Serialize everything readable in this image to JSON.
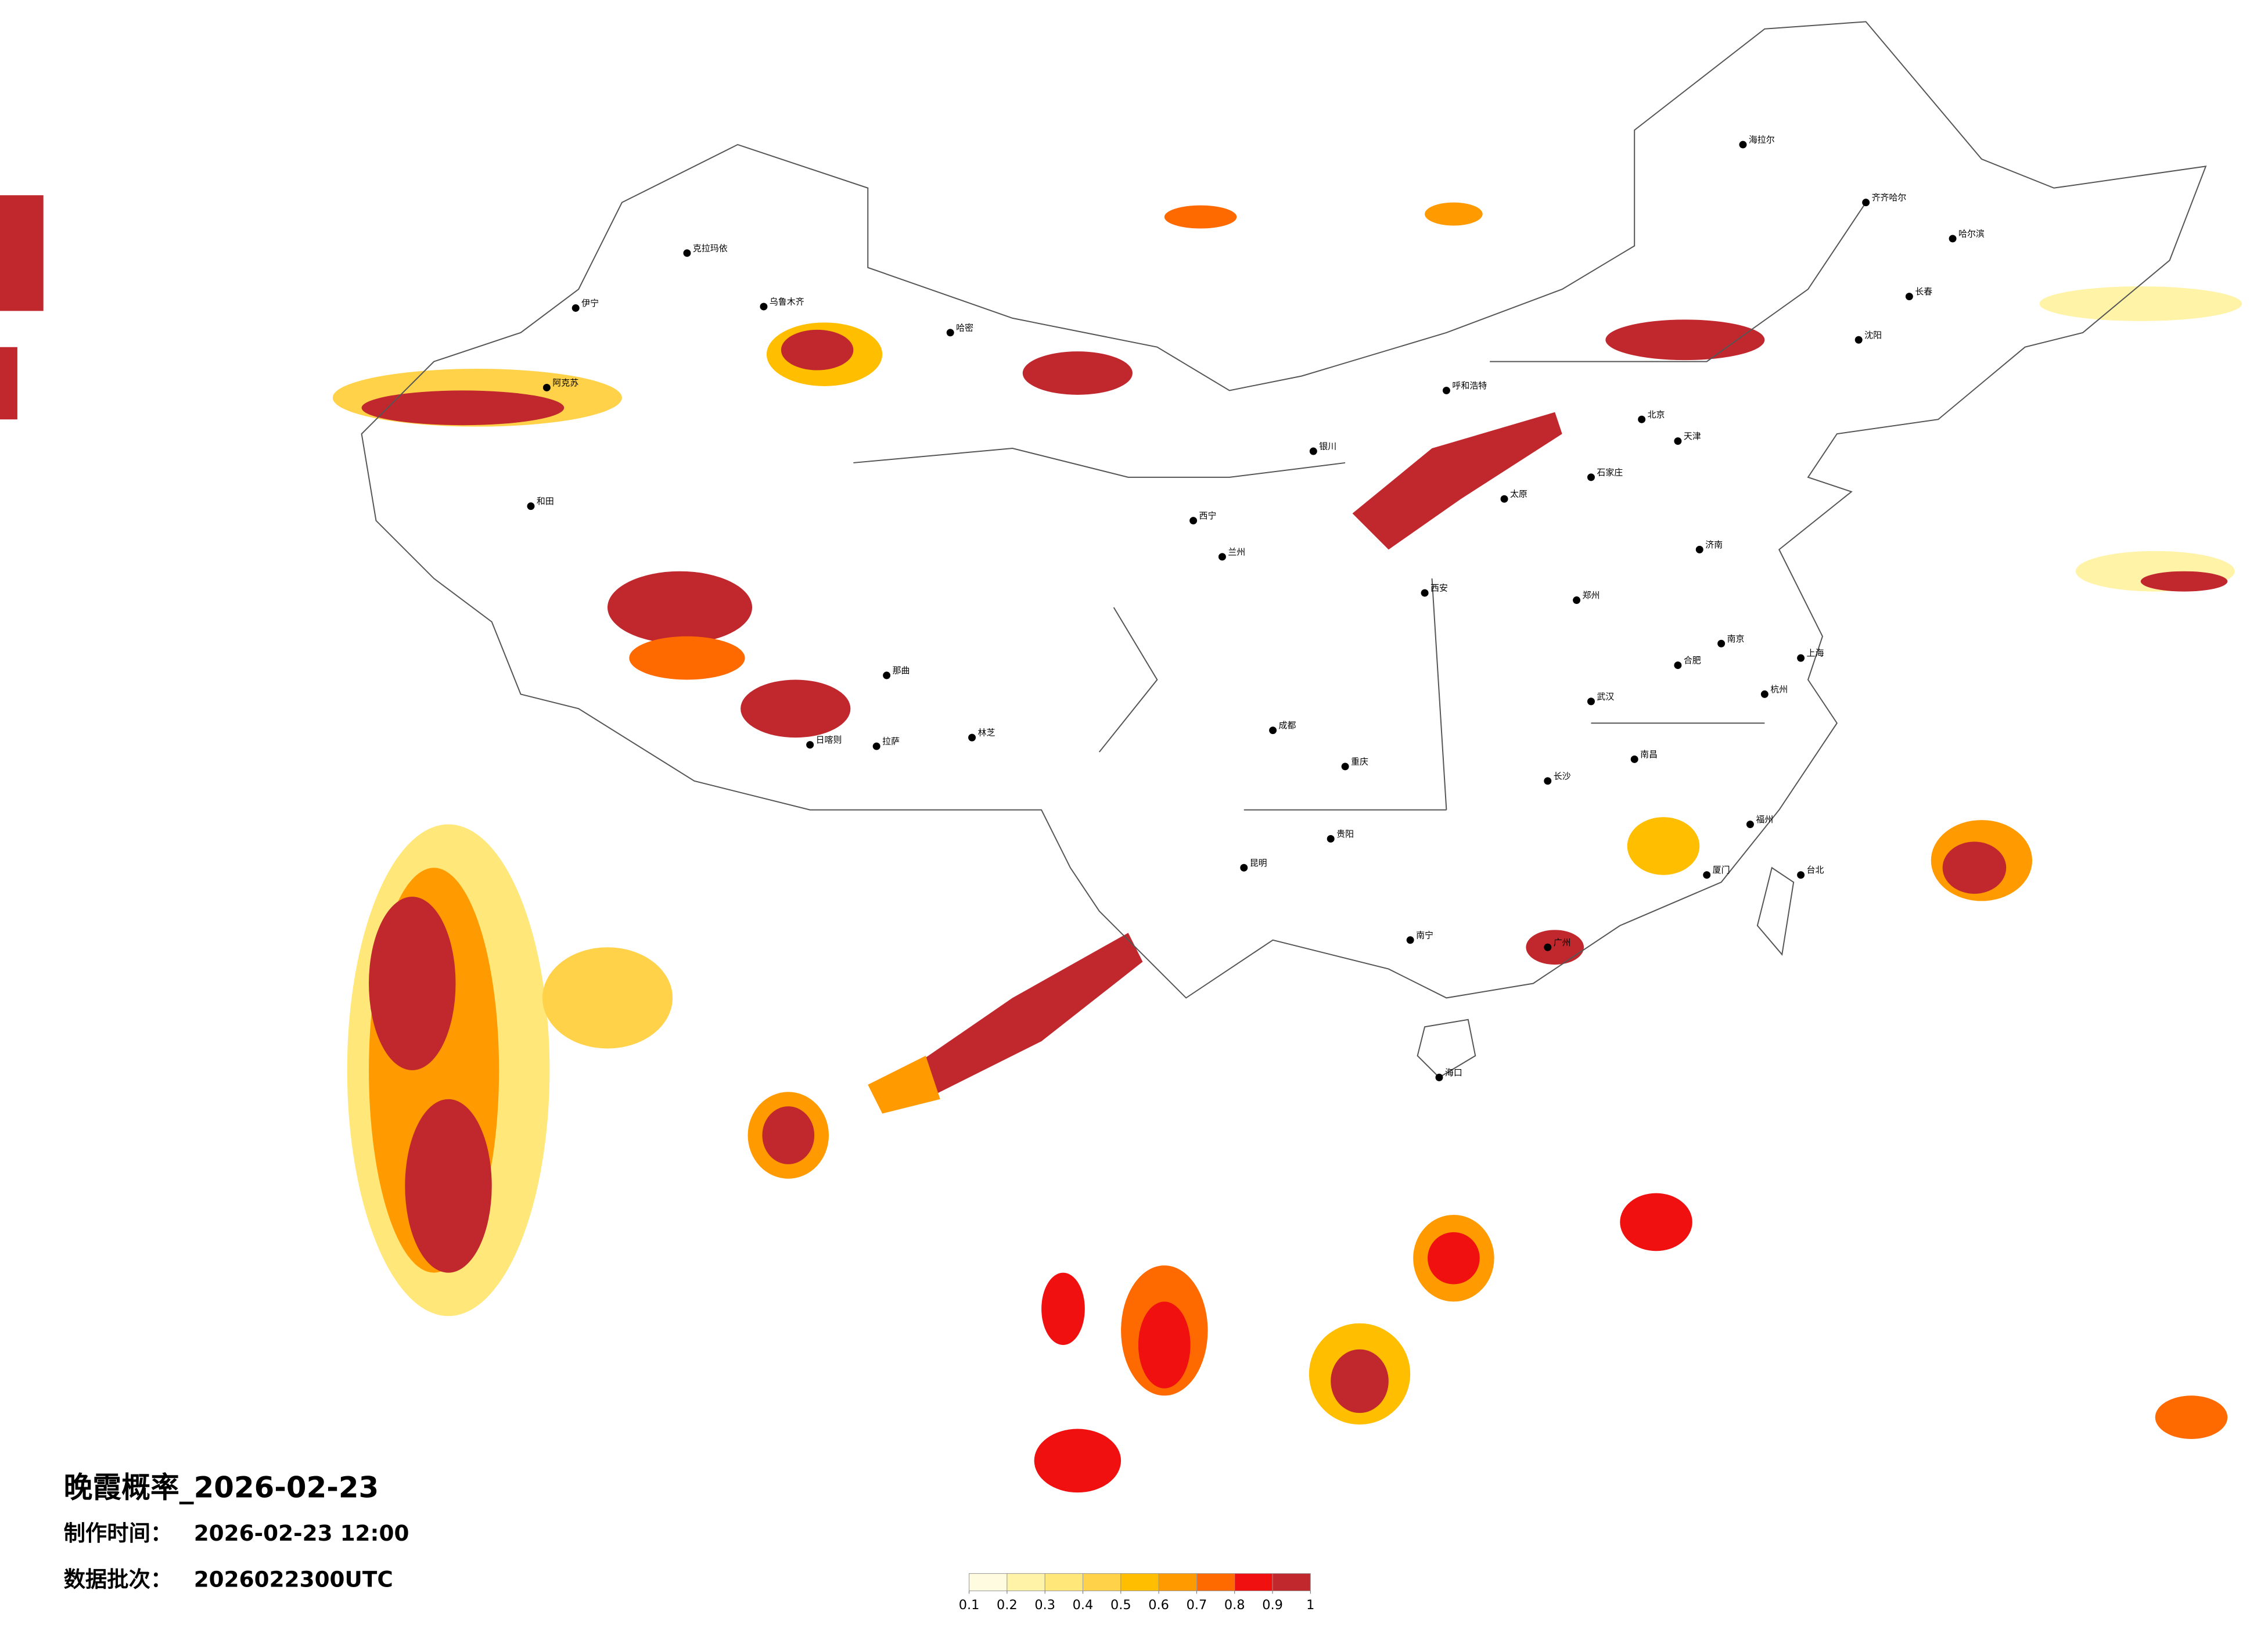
{
  "title": "晚霞概率_2026-02-23",
  "made_time": {
    "label": "制作时间：",
    "value": "2026-02-23 12:00"
  },
  "batch": {
    "label": "数据批次：",
    "value": "2026022300UTC"
  },
  "legend": {
    "colors": [
      "#fffbe0",
      "#fff3a8",
      "#ffe77a",
      "#ffd24a",
      "#ffbe00",
      "#ff9a00",
      "#ff6a00",
      "#f01010",
      "#c0282e"
    ],
    "ticks": [
      0.1,
      0.2,
      0.3,
      0.4,
      0.5,
      0.6,
      0.7,
      0.8,
      0.9,
      1
    ]
  },
  "cities": [
    "乌鲁木齐",
    "克拉玛依",
    "伊宁",
    "阿克苏",
    "和田",
    "哈密",
    "拉萨",
    "日喀则",
    "那曲",
    "林芝",
    "西宁",
    "兰州",
    "银川",
    "呼和浩特",
    "北京",
    "天津",
    "石家庄",
    "太原",
    "济南",
    "郑州",
    "西安",
    "武汉",
    "成都",
    "重庆",
    "长沙",
    "贵阳",
    "昆明",
    "南宁",
    "广州",
    "福州",
    "南昌",
    "杭州",
    "上海",
    "南京",
    "合肥",
    "海口",
    "台北",
    "沈阳",
    "长春",
    "哈尔滨",
    "海拉尔",
    "齐齐哈尔",
    "厦门"
  ]
}
